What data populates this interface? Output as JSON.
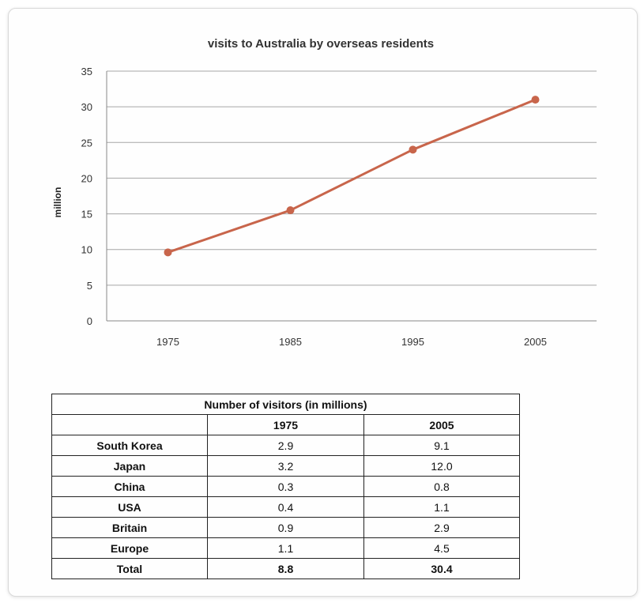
{
  "chart_data": [
    {
      "type": "line",
      "title": "visits to Australia by overseas residents",
      "xlabel": "",
      "ylabel": "million",
      "categories": [
        "1975",
        "1985",
        "1995",
        "2005"
      ],
      "series": [
        {
          "values": [
            9.6,
            15.5,
            24.0,
            31.0
          ],
          "color": "#c8654b"
        }
      ],
      "ylim": [
        0,
        35
      ],
      "yticks": [
        0,
        5,
        10,
        15,
        20,
        25,
        30,
        35
      ],
      "grid": true,
      "legend": "none"
    },
    {
      "type": "table",
      "title": "Number of visitors (in millions)",
      "columns": [
        "",
        "1975",
        "2005"
      ],
      "rows": [
        {
          "label": "South Korea",
          "values": [
            "2.9",
            "9.1"
          ]
        },
        {
          "label": "Japan",
          "values": [
            "3.2",
            "12.0"
          ]
        },
        {
          "label": "China",
          "values": [
            "0.3",
            "0.8"
          ]
        },
        {
          "label": "USA",
          "values": [
            "0.4",
            "1.1"
          ]
        },
        {
          "label": "Britain",
          "values": [
            "0.9",
            "2.9"
          ]
        },
        {
          "label": "Europe",
          "values": [
            "1.1",
            "4.5"
          ]
        },
        {
          "label": "Total",
          "values": [
            "8.8",
            "30.4"
          ]
        }
      ]
    }
  ],
  "colors": {
    "line": "#c8654b",
    "grid": "#a6a6a6",
    "axis": "#888888"
  }
}
